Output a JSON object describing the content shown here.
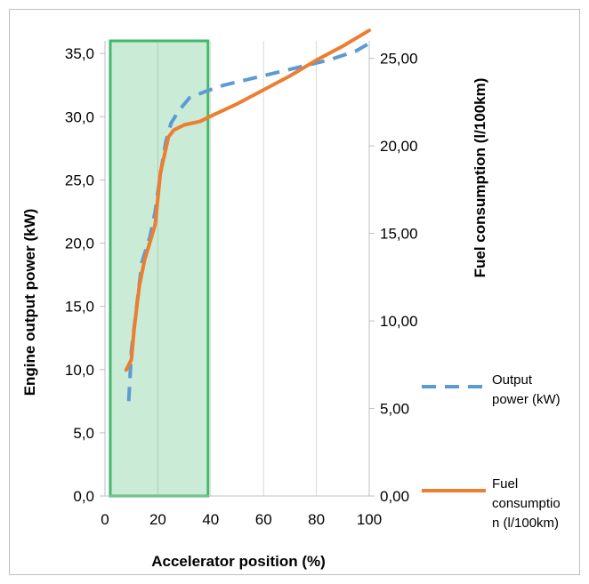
{
  "chart_data": {
    "type": "line",
    "title": "",
    "xlabel": "Accelerator position (%)",
    "ylabel_left": "Engine output power (kW)",
    "ylabel_right": "Fuel consumption (l/100km)",
    "xlim": [
      0,
      100
    ],
    "ylim_left": [
      0,
      36
    ],
    "ylim_right": [
      0,
      26
    ],
    "x_ticks": [
      "0",
      "20",
      "40",
      "60",
      "80",
      "100"
    ],
    "y_left_ticks": [
      "0,0",
      "5,0",
      "10,0",
      "15,0",
      "20,0",
      "25,0",
      "30,0",
      "35,0"
    ],
    "y_right_ticks": [
      "0,00",
      "5,00",
      "10,00",
      "15,00",
      "20,00",
      "25,00"
    ],
    "grid": "vertical",
    "legend_position": "right",
    "series": [
      {
        "name": "Output power (kW)",
        "axis": "left",
        "color": "#5b9bd5",
        "style": "dashed",
        "x": [
          9,
          10,
          12,
          14,
          17,
          19,
          21,
          23,
          25,
          28,
          32,
          38,
          45,
          55,
          65,
          75,
          85,
          95,
          100
        ],
        "y": [
          7.5,
          11.5,
          15.0,
          18.5,
          20.5,
          22.5,
          25.5,
          28.0,
          29.5,
          30.5,
          31.5,
          32.0,
          32.5,
          33.0,
          33.5,
          34.0,
          34.5,
          35.2,
          35.8
        ]
      },
      {
        "name": "Fuel consumption (l/100km)",
        "axis": "right",
        "color": "#ed7d31",
        "style": "solid",
        "x": [
          8,
          10,
          11,
          13,
          15,
          17,
          19,
          20,
          21,
          23,
          24,
          26,
          30,
          36,
          40,
          50,
          60,
          70,
          80,
          90,
          100
        ],
        "y": [
          7.2,
          7.8,
          9.5,
          12.0,
          13.5,
          14.5,
          15.5,
          17.0,
          18.5,
          19.8,
          20.5,
          20.9,
          21.2,
          21.4,
          21.7,
          22.4,
          23.2,
          24.0,
          24.9,
          25.7,
          26.6
        ]
      }
    ],
    "highlight": {
      "x_range": [
        2,
        39
      ],
      "y_range_left": [
        0,
        36
      ],
      "color": "#41b86b"
    }
  }
}
